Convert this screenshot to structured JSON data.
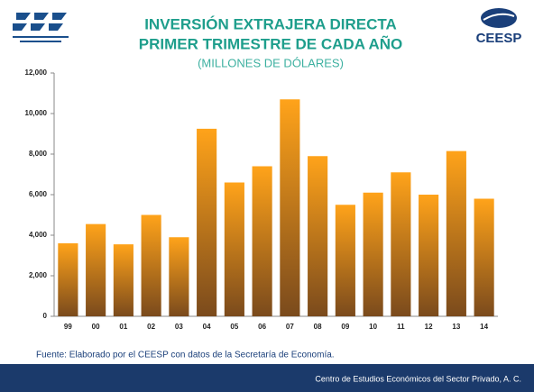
{
  "chart_data": {
    "type": "bar",
    "title": [
      "INVERSIÓN EXTRAJERA DIRECTA",
      "PRIMER TRIMESTRE DE CADA AÑO"
    ],
    "subtitle": "(MILLONES DE DÓLARES)",
    "categories": [
      "99",
      "00",
      "01",
      "02",
      "03",
      "04",
      "05",
      "06",
      "07",
      "08",
      "09",
      "10",
      "11",
      "12",
      "13",
      "14"
    ],
    "values": [
      3600,
      4550,
      3550,
      5000,
      3900,
      9250,
      6600,
      7400,
      10700,
      7900,
      5500,
      6100,
      7100,
      6000,
      8150,
      5800
    ],
    "color": "#ffa31a",
    "ylim": [
      0,
      12000
    ],
    "yticks": [
      0,
      {
        "value": 2000,
        "label": "2,000"
      },
      {
        "value": 4000,
        "label": "4,000"
      },
      {
        "value": 6000,
        "label": "6,000"
      },
      {
        "value": 8000,
        "label": "8,000"
      },
      {
        "value": 10000,
        "label": "10,000"
      },
      {
        "value": 12000,
        "label": "12,000"
      }
    ],
    "grid": false,
    "source": "Fuente: Elaborado por el CEESP con datos de la Secretaría de Economía.",
    "footer": "Centro de Estudios Económicos del Sector Privado, A. C.",
    "logo_text": "CEESP"
  }
}
